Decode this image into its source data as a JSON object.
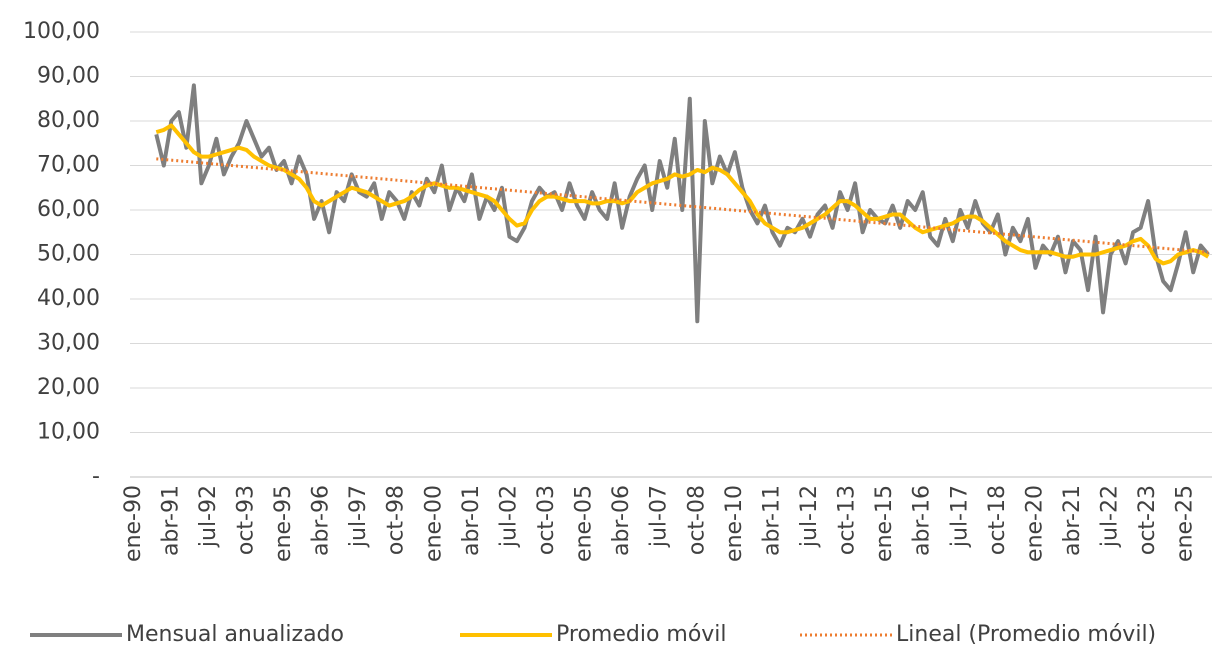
{
  "chart_data": {
    "type": "line",
    "categories": [
      "ene-90",
      null,
      null,
      null,
      null,
      "abr-91",
      null,
      null,
      null,
      null,
      "jul-92",
      null,
      null,
      null,
      null,
      "oct-93",
      null,
      null,
      null,
      null,
      "ene-95",
      null,
      null,
      null,
      null,
      "abr-96",
      null,
      null,
      null,
      null,
      "jul-97",
      null,
      null,
      null,
      null,
      "oct-98",
      null,
      null,
      null,
      null,
      "ene-00",
      null,
      null,
      null,
      null,
      "abr-01",
      null,
      null,
      null,
      null,
      "jul-02",
      null,
      null,
      null,
      null,
      "oct-03",
      null,
      null,
      null,
      null,
      "ene-05",
      null,
      null,
      null,
      null,
      "abr-06",
      null,
      null,
      null,
      null,
      "jul-07",
      null,
      null,
      null,
      null,
      "oct-08",
      null,
      null,
      null,
      null,
      "ene-10",
      null,
      null,
      null,
      null,
      "abr-11",
      null,
      null,
      null,
      null,
      "jul-12",
      null,
      null,
      null,
      null,
      "oct-13",
      null,
      null,
      null,
      null,
      "ene-15",
      null,
      null,
      null,
      null,
      "abr-16",
      null,
      null,
      null,
      null,
      "jul-17",
      null,
      null,
      null,
      null,
      "oct-18",
      null,
      null,
      null,
      null,
      "ene-20",
      null,
      null,
      null,
      null,
      "abr-21",
      null,
      null,
      null,
      null,
      "jul-22",
      null,
      null,
      null,
      null,
      "oct-23",
      null,
      null,
      null,
      null,
      "ene-25",
      null,
      null,
      null
    ],
    "series": [
      {
        "name": "Mensual anualizado",
        "color": "#7f7f7f",
        "style": "solid",
        "values": [
          null,
          null,
          null,
          77,
          70,
          80,
          82,
          74,
          88,
          66,
          70,
          76,
          68,
          72,
          75,
          80,
          76,
          72,
          74,
          69,
          71,
          66,
          72,
          68,
          58,
          62,
          55,
          64,
          62,
          68,
          64,
          63,
          66,
          58,
          64,
          62,
          58,
          64,
          61,
          67,
          64,
          70,
          60,
          65,
          62,
          68,
          58,
          63,
          60,
          65,
          54,
          53,
          56,
          62,
          65,
          63,
          64,
          60,
          66,
          61,
          58,
          64,
          60,
          58,
          66,
          56,
          63,
          67,
          70,
          60,
          71,
          65,
          76,
          60,
          85,
          35,
          80,
          66,
          72,
          68,
          73,
          65,
          60,
          57,
          61,
          55,
          52,
          56,
          55,
          58,
          54,
          59,
          61,
          56,
          64,
          60,
          66,
          55,
          60,
          58,
          57,
          61,
          56,
          62,
          60,
          64,
          54,
          52,
          58,
          53,
          60,
          56,
          62,
          57,
          55,
          59,
          50,
          56,
          53,
          58,
          47,
          52,
          50,
          54,
          46,
          53,
          51,
          42,
          54,
          37,
          50,
          53,
          48,
          55,
          56,
          62,
          50,
          44,
          42,
          48,
          55,
          46,
          52,
          50
        ]
      },
      {
        "name": "Promedio móvil",
        "color": "#ffc000",
        "style": "solid",
        "values": [
          null,
          null,
          null,
          77.5,
          78,
          79,
          77,
          75,
          73,
          72,
          72,
          72.5,
          73,
          73.5,
          74,
          73.5,
          72,
          71,
          70,
          69.5,
          69,
          68,
          67,
          65,
          62,
          61,
          62,
          63,
          64,
          65,
          64.5,
          64,
          63,
          62,
          61,
          61.5,
          62,
          63,
          64.5,
          65.5,
          66,
          65.5,
          65,
          65,
          64.5,
          64,
          63.5,
          63,
          62,
          60,
          58,
          56.5,
          57,
          60,
          62,
          63,
          63,
          62.5,
          62,
          62,
          62,
          61.5,
          61.5,
          62,
          62,
          61.5,
          62,
          64,
          65,
          66,
          66.5,
          67,
          68,
          67.5,
          68,
          69,
          68.5,
          69.5,
          69,
          68,
          66,
          64,
          62,
          59,
          57,
          56,
          55,
          55,
          55.5,
          56,
          57,
          58,
          59,
          60.5,
          62,
          62,
          61,
          59.5,
          58,
          58,
          58.5,
          59,
          59,
          57.5,
          56,
          55,
          55.5,
          56,
          56.5,
          57,
          58,
          58.5,
          58.5,
          57.5,
          56,
          54.5,
          53,
          52,
          51,
          50.5,
          50.5,
          50.5,
          50.5,
          50,
          49.5,
          49.5,
          50,
          50,
          50,
          50.5,
          51,
          51.5,
          52,
          53,
          53.5,
          52,
          49,
          48,
          48.5,
          50,
          50.5,
          51,
          50.5,
          49.5
        ]
      },
      {
        "name": "Lineal (Promedio móvil)",
        "color": "#ed7d31",
        "style": "dotted",
        "values": [
          null,
          null,
          null,
          71.5,
          71.35,
          71.2,
          71.05,
          70.9,
          70.75,
          70.6,
          70.45,
          70.3,
          70.15,
          70,
          69.85,
          69.7,
          69.55,
          69.4,
          69.25,
          69.1,
          68.95,
          68.8,
          68.65,
          68.5,
          68.35,
          68.2,
          68.05,
          67.9,
          67.75,
          67.6,
          67.45,
          67.3,
          67.15,
          67,
          66.85,
          66.7,
          66.55,
          66.4,
          66.25,
          66.1,
          65.95,
          65.8,
          65.65,
          65.5,
          65.35,
          65.2,
          65.05,
          64.9,
          64.75,
          64.6,
          64.45,
          64.3,
          64.15,
          64,
          63.85,
          63.7,
          63.55,
          63.4,
          63.25,
          63.1,
          62.95,
          62.8,
          62.65,
          62.5,
          62.35,
          62.2,
          62.05,
          61.9,
          61.75,
          61.6,
          61.45,
          61.3,
          61.15,
          61,
          60.85,
          60.7,
          60.55,
          60.4,
          60.25,
          60.1,
          59.95,
          59.8,
          59.65,
          59.5,
          59.35,
          59.2,
          59.05,
          58.9,
          58.75,
          58.6,
          58.45,
          58.3,
          58.15,
          58,
          57.85,
          57.7,
          57.55,
          57.4,
          57.25,
          57.1,
          56.95,
          56.8,
          56.65,
          56.5,
          56.35,
          56.2,
          56.05,
          55.9,
          55.75,
          55.6,
          55.45,
          55.3,
          55.15,
          55,
          54.85,
          54.7,
          54.55,
          54.4,
          54.25,
          54.1,
          53.95,
          53.8,
          53.65,
          53.5,
          53.35,
          53.2,
          53.05,
          52.9,
          52.75,
          52.6,
          52.45,
          52.3,
          52.15,
          52,
          51.85,
          51.7,
          51.55,
          51.4,
          51.25,
          51.1,
          50.95,
          50.8,
          50.65,
          50.5
        ]
      }
    ],
    "ylim": [
      0,
      100
    ],
    "yticks": [
      {
        "value": 0,
        "label": "-"
      },
      {
        "value": 10,
        "label": "10,00"
      },
      {
        "value": 20,
        "label": "20,00"
      },
      {
        "value": 30,
        "label": "30,00"
      },
      {
        "value": 40,
        "label": "40,00"
      },
      {
        "value": 50,
        "label": "50,00"
      },
      {
        "value": 60,
        "label": "60,00"
      },
      {
        "value": 70,
        "label": "70,00"
      },
      {
        "value": 80,
        "label": "80,00"
      },
      {
        "value": 90,
        "label": "90,00"
      },
      {
        "value": 100,
        "label": "100,00"
      }
    ],
    "grid": true,
    "legend": "bottom"
  }
}
